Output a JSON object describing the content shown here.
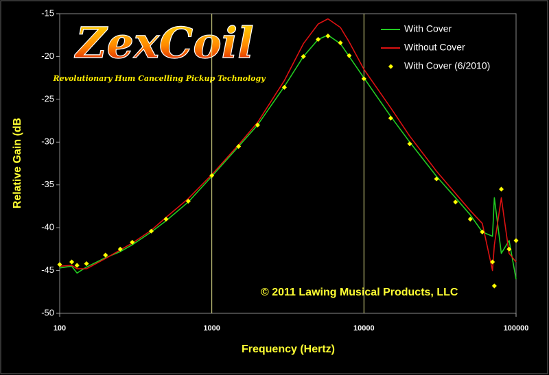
{
  "logo": {
    "title": "ZexCoil",
    "tagline": "Revolutionary Hum Cancelling Pickup Technology"
  },
  "chart_data": {
    "type": "line",
    "x_label": "Frequency (Hertz)",
    "y_label": "Relative Gain (dB",
    "annotations": [
      "© 2011 Lawing Musical Products, LLC"
    ],
    "x_log": true,
    "xlim": [
      100,
      100000
    ],
    "xticks": [
      100,
      1000,
      10000,
      100000
    ],
    "ylim": [
      -50,
      -15
    ],
    "yticks": [
      -15,
      -20,
      -25,
      -30,
      -35,
      -40,
      -45,
      -50
    ],
    "x_grid": true,
    "legend": "top-right",
    "x": [
      100,
      120,
      130,
      150,
      200,
      250,
      300,
      400,
      500,
      700,
      1000,
      1500,
      2000,
      3000,
      4000,
      5000,
      5800,
      7000,
      8000,
      10000,
      15000,
      20000,
      30000,
      40000,
      50000,
      60000,
      70000,
      72000,
      80000,
      90000,
      100000
    ],
    "series": [
      {
        "name": "With Cover",
        "color": "#22cc22",
        "style": "line",
        "values": [
          -44.7,
          -44.5,
          -45.3,
          -44.6,
          -43.5,
          -42.8,
          -42,
          -40.5,
          -39.2,
          -37,
          -34,
          -30.5,
          -28,
          -23.5,
          -20,
          -18,
          -17.5,
          -18.5,
          -20,
          -22.5,
          -27,
          -30,
          -34,
          -36.5,
          -38.5,
          -40.5,
          -41,
          -36.5,
          -43,
          -41.5,
          -46
        ]
      },
      {
        "name": "Without Cover",
        "color": "#dd1111",
        "style": "line",
        "values": [
          -44.5,
          -44.4,
          -44.8,
          -44.8,
          -43.6,
          -42.6,
          -41.8,
          -40.3,
          -38.8,
          -36.6,
          -33.8,
          -30.3,
          -27.7,
          -22.8,
          -18.5,
          -16.2,
          -15.6,
          -16.6,
          -18.3,
          -21.5,
          -26,
          -29.3,
          -33.4,
          -36,
          -38,
          -39.5,
          -45,
          -42,
          -36.5,
          -43,
          -44
        ]
      },
      {
        "name": "With Cover (6/2010)",
        "color": "#ffff00",
        "style": "points",
        "values": [
          -44.3,
          -44,
          -44.4,
          -44.2,
          -43.2,
          -42.5,
          -41.7,
          -40.4,
          -39,
          -36.9,
          -33.9,
          -30.5,
          -28,
          -23.6,
          -20,
          -18,
          -17.6,
          -18.4,
          -19.9,
          -22.6,
          -27.2,
          -30.2,
          -34.3,
          -37,
          -39,
          -40.5,
          -44,
          -46.8,
          -35.5,
          -42.5,
          -41.5
        ]
      }
    ]
  }
}
